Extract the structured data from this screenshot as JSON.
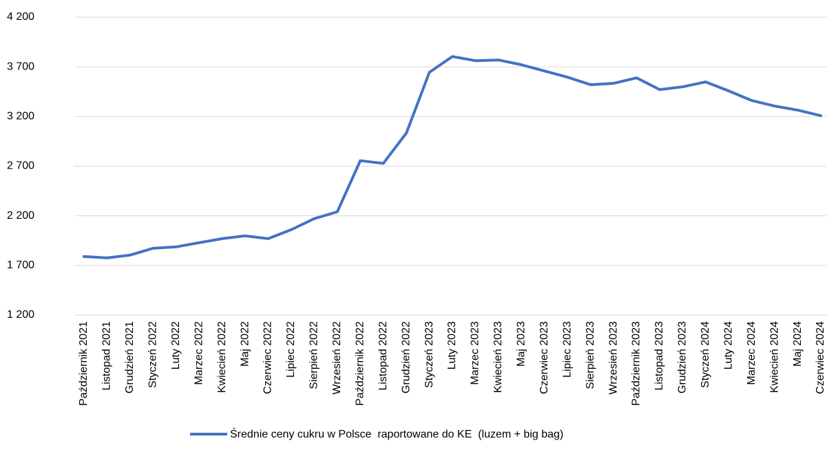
{
  "chart_data": {
    "type": "line",
    "categories": [
      "Październik 2021",
      "Listopad 2021",
      "Grudzień 2021",
      "Styczeń 2022",
      "Luty 2022",
      "Marzec 2022",
      "Kwiecień 2022",
      "Maj 2022",
      "Czerwiec 2022",
      "Lipiec 2022",
      "Sierpień 2022",
      "Wrzesień 2022",
      "Październik 2022",
      "Listopad 2022",
      "Grudzień 2022",
      "Styczeń 2023",
      "Luty 2023",
      "Marzec 2023",
      "Kwiecień 2023",
      "Maj 2023",
      "Czerwiec 2023",
      "Lipiec 2023",
      "Sierpień 2023",
      "Wrzesień 2023",
      "Październik 2023",
      "Listopad 2023",
      "Grudzień 2023",
      "Styczeń 2024",
      "Luty 2024",
      "Marzec 2024",
      "Kwiecień 2024",
      "Maj 2024",
      "Czerwiec 2024"
    ],
    "series": [
      {
        "name": "Średnie ceny cukru w Polsce  raportowane do KE  (luzem + big bag)",
        "color": "#4472c4",
        "values": [
          1790,
          1776,
          1804,
          1873,
          1887,
          1929,
          1970,
          1998,
          1970,
          2060,
          2171,
          2240,
          2755,
          2728,
          3033,
          3645,
          3804,
          3762,
          3769,
          3721,
          3658,
          3596,
          3520,
          3534,
          3589,
          3471,
          3499,
          3548,
          3458,
          3361,
          3305,
          3264,
          3208
        ]
      }
    ],
    "ylim": [
      1200,
      4200
    ],
    "yticks": [
      {
        "value": 1200,
        "label": "1 200"
      },
      {
        "value": 1700,
        "label": "1 700"
      },
      {
        "value": 2200,
        "label": "2 200"
      },
      {
        "value": 2700,
        "label": "2 700"
      },
      {
        "value": 3200,
        "label": "3 200"
      },
      {
        "value": 3700,
        "label": "3 700"
      },
      {
        "value": 4200,
        "label": "4 200"
      }
    ],
    "grid": true,
    "legend": "bottom"
  }
}
